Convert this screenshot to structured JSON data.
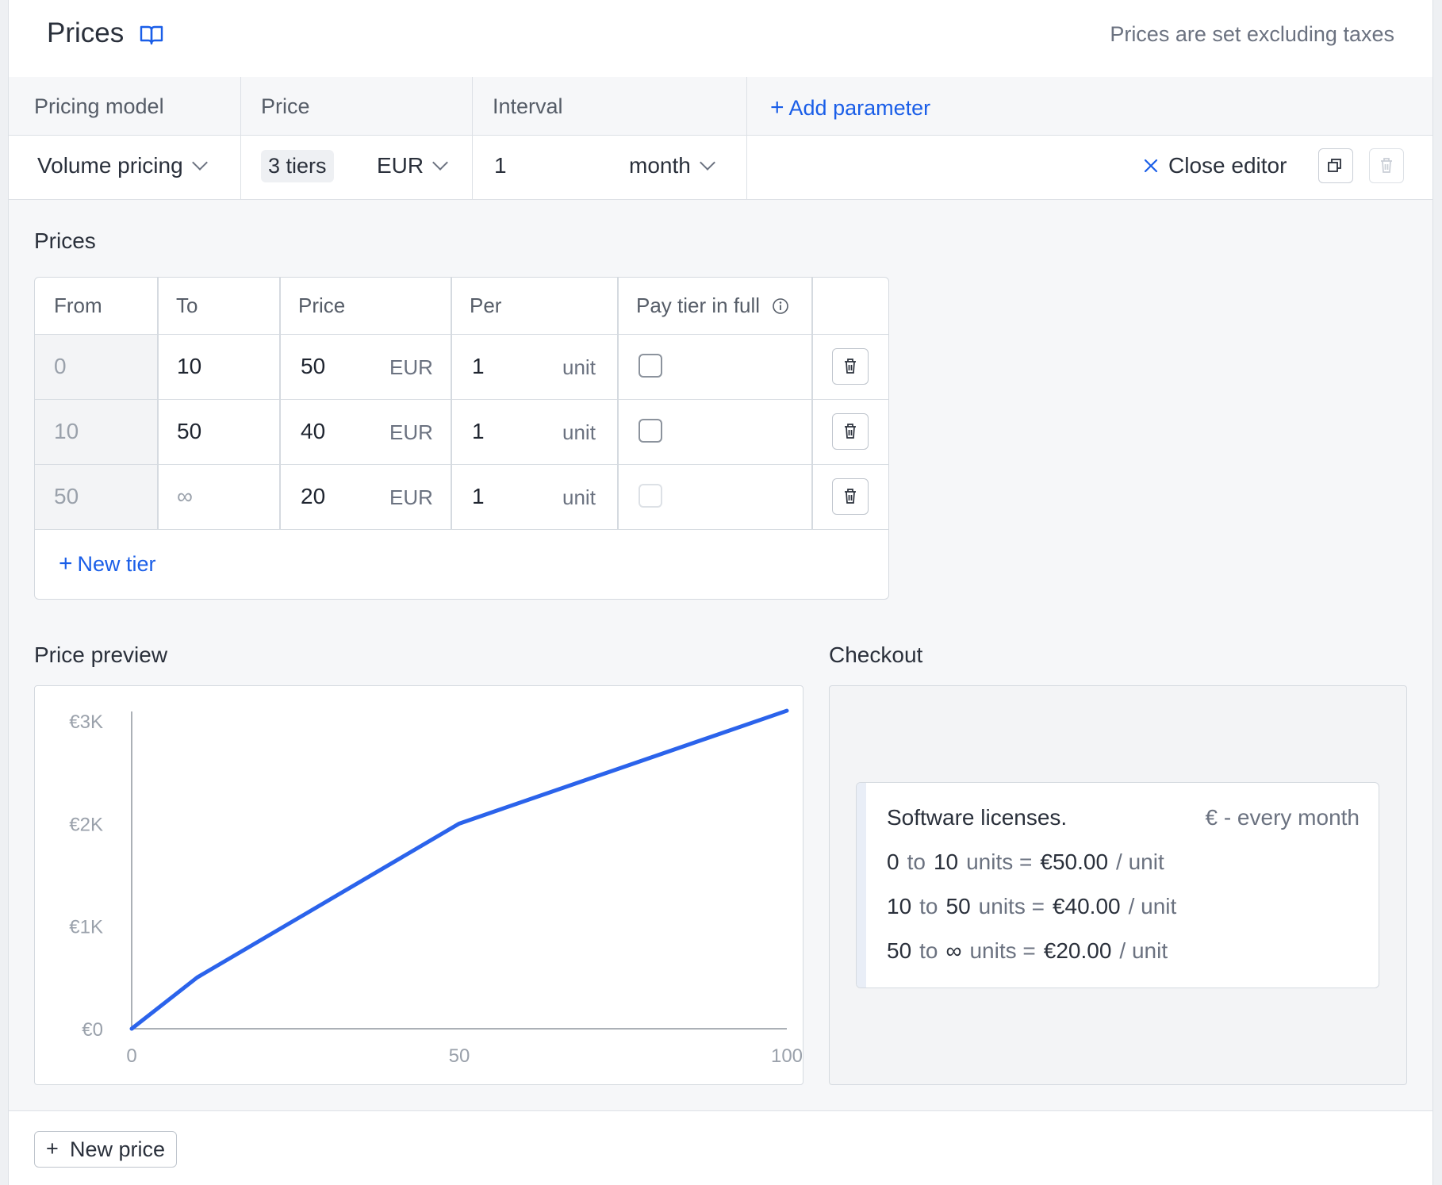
{
  "header": {
    "title": "Prices",
    "tax_note": "Prices are set excluding taxes"
  },
  "params": {
    "headers": {
      "pricing_model": "Pricing model",
      "price": "Price",
      "interval": "Interval",
      "add_parameter": "Add parameter"
    },
    "values": {
      "pricing_model": "Volume pricing",
      "tiers": "3 tiers",
      "currency": "EUR",
      "interval_count": "1",
      "interval_unit": "month"
    },
    "close_editor": "Close editor"
  },
  "prices": {
    "title": "Prices",
    "columns": [
      "From",
      "To",
      "Price",
      "Per",
      "Pay tier in full"
    ],
    "rows": [
      {
        "from": "0",
        "to": "10",
        "price": "50",
        "currency": "EUR",
        "per": "1",
        "unit": "unit",
        "pay_in_full": false,
        "pay_in_full_disabled": false
      },
      {
        "from": "10",
        "to": "50",
        "price": "40",
        "currency": "EUR",
        "per": "1",
        "unit": "unit",
        "pay_in_full": false,
        "pay_in_full_disabled": false
      },
      {
        "from": "50",
        "to": "∞",
        "price": "20",
        "currency": "EUR",
        "per": "1",
        "unit": "unit",
        "pay_in_full": false,
        "pay_in_full_disabled": true
      }
    ],
    "new_tier": "New tier"
  },
  "preview": {
    "title": "Price preview"
  },
  "chart_data": {
    "type": "line",
    "title": "",
    "xlabel": "",
    "ylabel": "",
    "xlim": [
      0,
      100
    ],
    "ylim": [
      0,
      3000
    ],
    "x_ticks": [
      "0",
      "50",
      "100"
    ],
    "y_ticks": [
      "€0",
      "€1K",
      "€2K",
      "€3K"
    ],
    "series": [
      {
        "x": [
          0,
          10,
          50,
          100
        ],
        "y": [
          0,
          500,
          2000,
          3100
        ]
      }
    ],
    "color": "#2b63eb",
    "grid": false
  },
  "checkout": {
    "title": "Checkout",
    "product": "Software licenses.",
    "frequency": "€ - every month",
    "lines": [
      {
        "from": "0",
        "to_word": "to",
        "to": "10",
        "units": "units =",
        "price": "€50.00",
        "per": "/ unit"
      },
      {
        "from": "10",
        "to_word": "to",
        "to": "50",
        "units": "units =",
        "price": "€40.00",
        "per": "/ unit"
      },
      {
        "from": "50",
        "to_word": "to",
        "to": "∞",
        "units": "units =",
        "price": "€20.00",
        "per": "/ unit"
      }
    ]
  },
  "footer": {
    "new_price": "New price"
  }
}
